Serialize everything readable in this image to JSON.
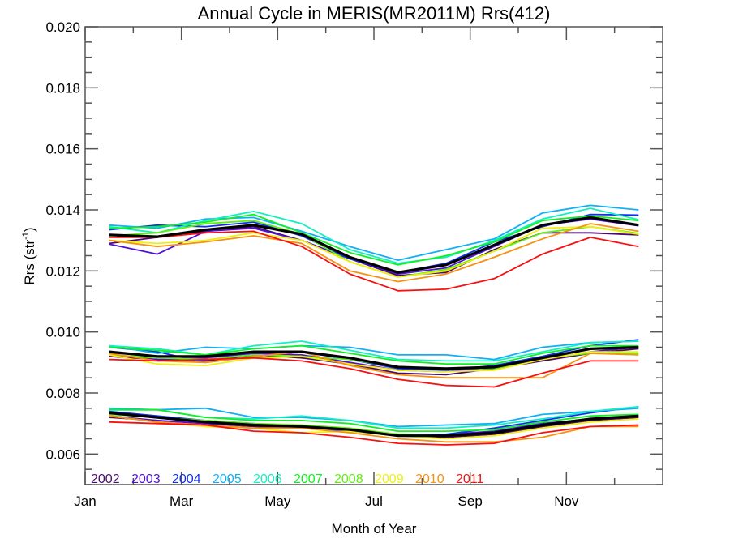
{
  "chart_data": {
    "type": "line",
    "title": "Annual Cycle in MERIS(MR2011M) Rrs(412)",
    "xlabel": "Month of Year",
    "ylabel": "Rrs (str",
    "ylabel_sup": "-1",
    "ylabel_close": ")",
    "xlim": [
      0,
      12
    ],
    "ylim": [
      0.005,
      0.02
    ],
    "x_ticks": [
      {
        "value": 0,
        "label": "Jan"
      },
      {
        "value": 2,
        "label": "Mar"
      },
      {
        "value": 4,
        "label": "May"
      },
      {
        "value": 6,
        "label": "Jul"
      },
      {
        "value": 8,
        "label": "Sep"
      },
      {
        "value": 10,
        "label": "Nov"
      }
    ],
    "x_minor_ticks": [
      1,
      3,
      5,
      7,
      9,
      11
    ],
    "y_ticks": [
      {
        "value": 0.006,
        "label": "0.006"
      },
      {
        "value": 0.008,
        "label": "0.008"
      },
      {
        "value": 0.01,
        "label": "0.010"
      },
      {
        "value": 0.012,
        "label": "0.012"
      },
      {
        "value": 0.014,
        "label": "0.014"
      },
      {
        "value": 0.016,
        "label": "0.016"
      },
      {
        "value": 0.018,
        "label": "0.018"
      },
      {
        "value": 0.02,
        "label": "0.020"
      }
    ],
    "y_minor_step": 0.0005,
    "grid": false,
    "legend_position": "bottom-left",
    "x": [
      0.5,
      1.5,
      2.5,
      3.5,
      4.5,
      5.5,
      6.5,
      7.5,
      8.5,
      9.5,
      10.5,
      11.5
    ],
    "groups": [
      {
        "name": "upper",
        "series": [
          {
            "name": "2002",
            "color": "#4b0a6e",
            "values": [
              0.0129,
              0.0131,
              0.0133,
              0.01345,
              0.013,
              0.0124,
              0.01185,
              0.01195,
              0.0127,
              0.01325,
              0.01325,
              0.01318
            ]
          },
          {
            "name": "2003",
            "color": "#5010d8",
            "values": [
              0.01288,
              0.01255,
              0.0133,
              0.0134,
              0.013,
              0.0124,
              0.0119,
              0.0121,
              0.0128,
              0.0135,
              0.0137,
              0.01348
            ]
          },
          {
            "name": "2004",
            "color": "#1030f0",
            "values": [
              0.01335,
              0.0135,
              0.01345,
              0.0136,
              0.01315,
              0.0124,
              0.01195,
              0.01225,
              0.01295,
              0.01345,
              0.01385,
              0.01383
            ]
          },
          {
            "name": "2005",
            "color": "#10b0f8",
            "values": [
              0.0135,
              0.0134,
              0.0137,
              0.01375,
              0.0133,
              0.0128,
              0.01235,
              0.0127,
              0.01305,
              0.0139,
              0.01415,
              0.014
            ]
          },
          {
            "name": "2006",
            "color": "#10f0c0",
            "values": [
              0.01345,
              0.01325,
              0.01365,
              0.01395,
              0.01355,
              0.0127,
              0.01225,
              0.01245,
              0.013,
              0.0137,
              0.01405,
              0.01368
            ]
          },
          {
            "name": "2007",
            "color": "#10f020",
            "values": [
              0.0134,
              0.01345,
              0.0136,
              0.01385,
              0.01325,
              0.0126,
              0.0122,
              0.0125,
              0.01295,
              0.01365,
              0.0138,
              0.01365
            ]
          },
          {
            "name": "2008",
            "color": "#60f010",
            "values": [
              0.01315,
              0.01325,
              0.01355,
              0.01365,
              0.0132,
              0.0123,
              0.0118,
              0.01205,
              0.01265,
              0.01325,
              0.01345,
              0.01323
            ]
          },
          {
            "name": "2009",
            "color": "#f0f010",
            "values": [
              0.013,
              0.0129,
              0.013,
              0.01325,
              0.013,
              0.0123,
              0.0118,
              0.012,
              0.01265,
              0.0134,
              0.01345,
              0.0132
            ]
          },
          {
            "name": "2010",
            "color": "#f89010",
            "values": [
              0.013,
              0.0128,
              0.01295,
              0.01315,
              0.0129,
              0.012,
              0.01165,
              0.0119,
              0.01245,
              0.01305,
              0.01355,
              0.0133
            ]
          },
          {
            "name": "2011",
            "color": "#f81010",
            "values": [
              0.0131,
              0.0131,
              0.01325,
              0.0133,
              0.0128,
              0.0119,
              0.01135,
              0.0114,
              0.01175,
              0.01255,
              0.0131,
              0.0128
            ]
          },
          {
            "name": "mean",
            "color": "#000000",
            "values": [
              0.01318,
              0.01312,
              0.01335,
              0.0135,
              0.0132,
              0.01245,
              0.01195,
              0.0122,
              0.01285,
              0.0135,
              0.01375,
              0.0135
            ]
          }
        ]
      },
      {
        "name": "middle",
        "series": [
          {
            "name": "2002",
            "color": "#4b0a6e",
            "values": [
              0.0092,
              0.0091,
              0.00905,
              0.00925,
              0.00915,
              0.00895,
              0.00865,
              0.0086,
              0.0088,
              0.00905,
              0.0093,
              0.00945
            ]
          },
          {
            "name": "2003",
            "color": "#5010d8",
            "values": [
              0.00925,
              0.0091,
              0.00915,
              0.0093,
              0.00925,
              0.009,
              0.00875,
              0.0087,
              0.00885,
              0.0091,
              0.00935,
              0.0095
            ]
          },
          {
            "name": "2004",
            "color": "#1030f0",
            "values": [
              0.0095,
              0.00935,
              0.009,
              0.0092,
              0.00935,
              0.0091,
              0.0088,
              0.00875,
              0.0089,
              0.0092,
              0.00955,
              0.00975
            ]
          },
          {
            "name": "2005",
            "color": "#10b0f8",
            "values": [
              0.00955,
              0.0093,
              0.0095,
              0.00945,
              0.00955,
              0.0095,
              0.00925,
              0.00925,
              0.0091,
              0.0095,
              0.00965,
              0.0097
            ]
          },
          {
            "name": "2006",
            "color": "#10f0c0",
            "values": [
              0.00955,
              0.00945,
              0.00925,
              0.00955,
              0.0097,
              0.0094,
              0.0091,
              0.00905,
              0.00905,
              0.00935,
              0.00965,
              0.0097
            ]
          },
          {
            "name": "2007",
            "color": "#10f020",
            "values": [
              0.0095,
              0.0094,
              0.00925,
              0.00945,
              0.00955,
              0.0093,
              0.00905,
              0.00895,
              0.00895,
              0.0093,
              0.00955,
              0.00955
            ]
          },
          {
            "name": "2008",
            "color": "#60f010",
            "values": [
              0.00925,
              0.00915,
              0.0091,
              0.00925,
              0.0092,
              0.0091,
              0.00885,
              0.0088,
              0.0088,
              0.00915,
              0.0093,
              0.0093
            ]
          },
          {
            "name": "2009",
            "color": "#f0f010",
            "values": [
              0.00925,
              0.00895,
              0.0089,
              0.00915,
              0.0092,
              0.00895,
              0.00875,
              0.0087,
              0.00875,
              0.0091,
              0.00935,
              0.00935
            ]
          },
          {
            "name": "2010",
            "color": "#f89010",
            "values": [
              0.0093,
              0.00905,
              0.009,
              0.0092,
              0.00935,
              0.0089,
              0.0086,
              0.0085,
              0.0085,
              0.0085,
              0.0093,
              0.00925
            ]
          },
          {
            "name": "2011",
            "color": "#f81010",
            "values": [
              0.0091,
              0.00905,
              0.0091,
              0.00915,
              0.00905,
              0.0088,
              0.00845,
              0.00825,
              0.0082,
              0.00865,
              0.00905,
              0.00905
            ]
          },
          {
            "name": "mean",
            "color": "#000000",
            "values": [
              0.00935,
              0.0092,
              0.0092,
              0.00935,
              0.00935,
              0.00915,
              0.00885,
              0.0088,
              0.00885,
              0.00915,
              0.00945,
              0.0095
            ]
          }
        ]
      },
      {
        "name": "lower",
        "series": [
          {
            "name": "2002",
            "color": "#4b0a6e",
            "values": [
              0.0072,
              0.0071,
              0.007,
              0.0069,
              0.00685,
              0.0068,
              0.0066,
              0.00655,
              0.00665,
              0.0069,
              0.0071,
              0.0072
            ]
          },
          {
            "name": "2003",
            "color": "#5010d8",
            "values": [
              0.00725,
              0.0071,
              0.007,
              0.00695,
              0.0069,
              0.0068,
              0.00665,
              0.00665,
              0.00675,
              0.007,
              0.00715,
              0.00725
            ]
          },
          {
            "name": "2004",
            "color": "#1030f0",
            "values": [
              0.0074,
              0.00725,
              0.0071,
              0.007,
              0.00685,
              0.00675,
              0.0066,
              0.00665,
              0.00685,
              0.0071,
              0.00735,
              0.00755
            ]
          },
          {
            "name": "2005",
            "color": "#10b0f8",
            "values": [
              0.0075,
              0.00745,
              0.0075,
              0.0072,
              0.0072,
              0.0071,
              0.0069,
              0.00695,
              0.007,
              0.0073,
              0.0074,
              0.0075
            ]
          },
          {
            "name": "2006",
            "color": "#10f0c0",
            "values": [
              0.00745,
              0.00745,
              0.0072,
              0.00715,
              0.00725,
              0.0071,
              0.00685,
              0.00685,
              0.00695,
              0.00715,
              0.0074,
              0.00755
            ]
          },
          {
            "name": "2007",
            "color": "#10f020",
            "values": [
              0.00745,
              0.00745,
              0.0072,
              0.0071,
              0.0071,
              0.007,
              0.00675,
              0.00675,
              0.0068,
              0.00705,
              0.00725,
              0.0073
            ]
          },
          {
            "name": "2008",
            "color": "#60f010",
            "values": [
              0.0073,
              0.0072,
              0.0071,
              0.007,
              0.00695,
              0.00685,
              0.00665,
              0.0066,
              0.0067,
              0.00695,
              0.00715,
              0.00725
            ]
          },
          {
            "name": "2009",
            "color": "#f0f010",
            "values": [
              0.00725,
              0.00705,
              0.0069,
              0.00685,
              0.0067,
              0.00675,
              0.0066,
              0.0065,
              0.0066,
              0.00685,
              0.00705,
              0.00715
            ]
          },
          {
            "name": "2010",
            "color": "#f89010",
            "values": [
              0.00725,
              0.00705,
              0.00695,
              0.00685,
              0.00685,
              0.0067,
              0.0065,
              0.0064,
              0.0064,
              0.00655,
              0.0069,
              0.0069
            ]
          },
          {
            "name": "2011",
            "color": "#f81010",
            "values": [
              0.00705,
              0.007,
              0.00695,
              0.00675,
              0.0067,
              0.00655,
              0.00635,
              0.0063,
              0.00635,
              0.0067,
              0.0069,
              0.00695
            ]
          },
          {
            "name": "mean",
            "color": "#000000",
            "values": [
              0.00735,
              0.0072,
              0.00705,
              0.00695,
              0.0069,
              0.0068,
              0.0066,
              0.0066,
              0.0067,
              0.00695,
              0.00715,
              0.00725
            ]
          }
        ]
      }
    ],
    "legend": [
      {
        "label": "2002",
        "color": "#4b0a6e"
      },
      {
        "label": "2003",
        "color": "#5010d8"
      },
      {
        "label": "2004",
        "color": "#1030f0"
      },
      {
        "label": "2005",
        "color": "#10b0f8"
      },
      {
        "label": "2006",
        "color": "#10f0c0"
      },
      {
        "label": "2007",
        "color": "#10f020"
      },
      {
        "label": "2008",
        "color": "#60f010"
      },
      {
        "label": "2009",
        "color": "#f0f010"
      },
      {
        "label": "2010",
        "color": "#f89010"
      },
      {
        "label": "2011",
        "color": "#f81010"
      }
    ]
  }
}
